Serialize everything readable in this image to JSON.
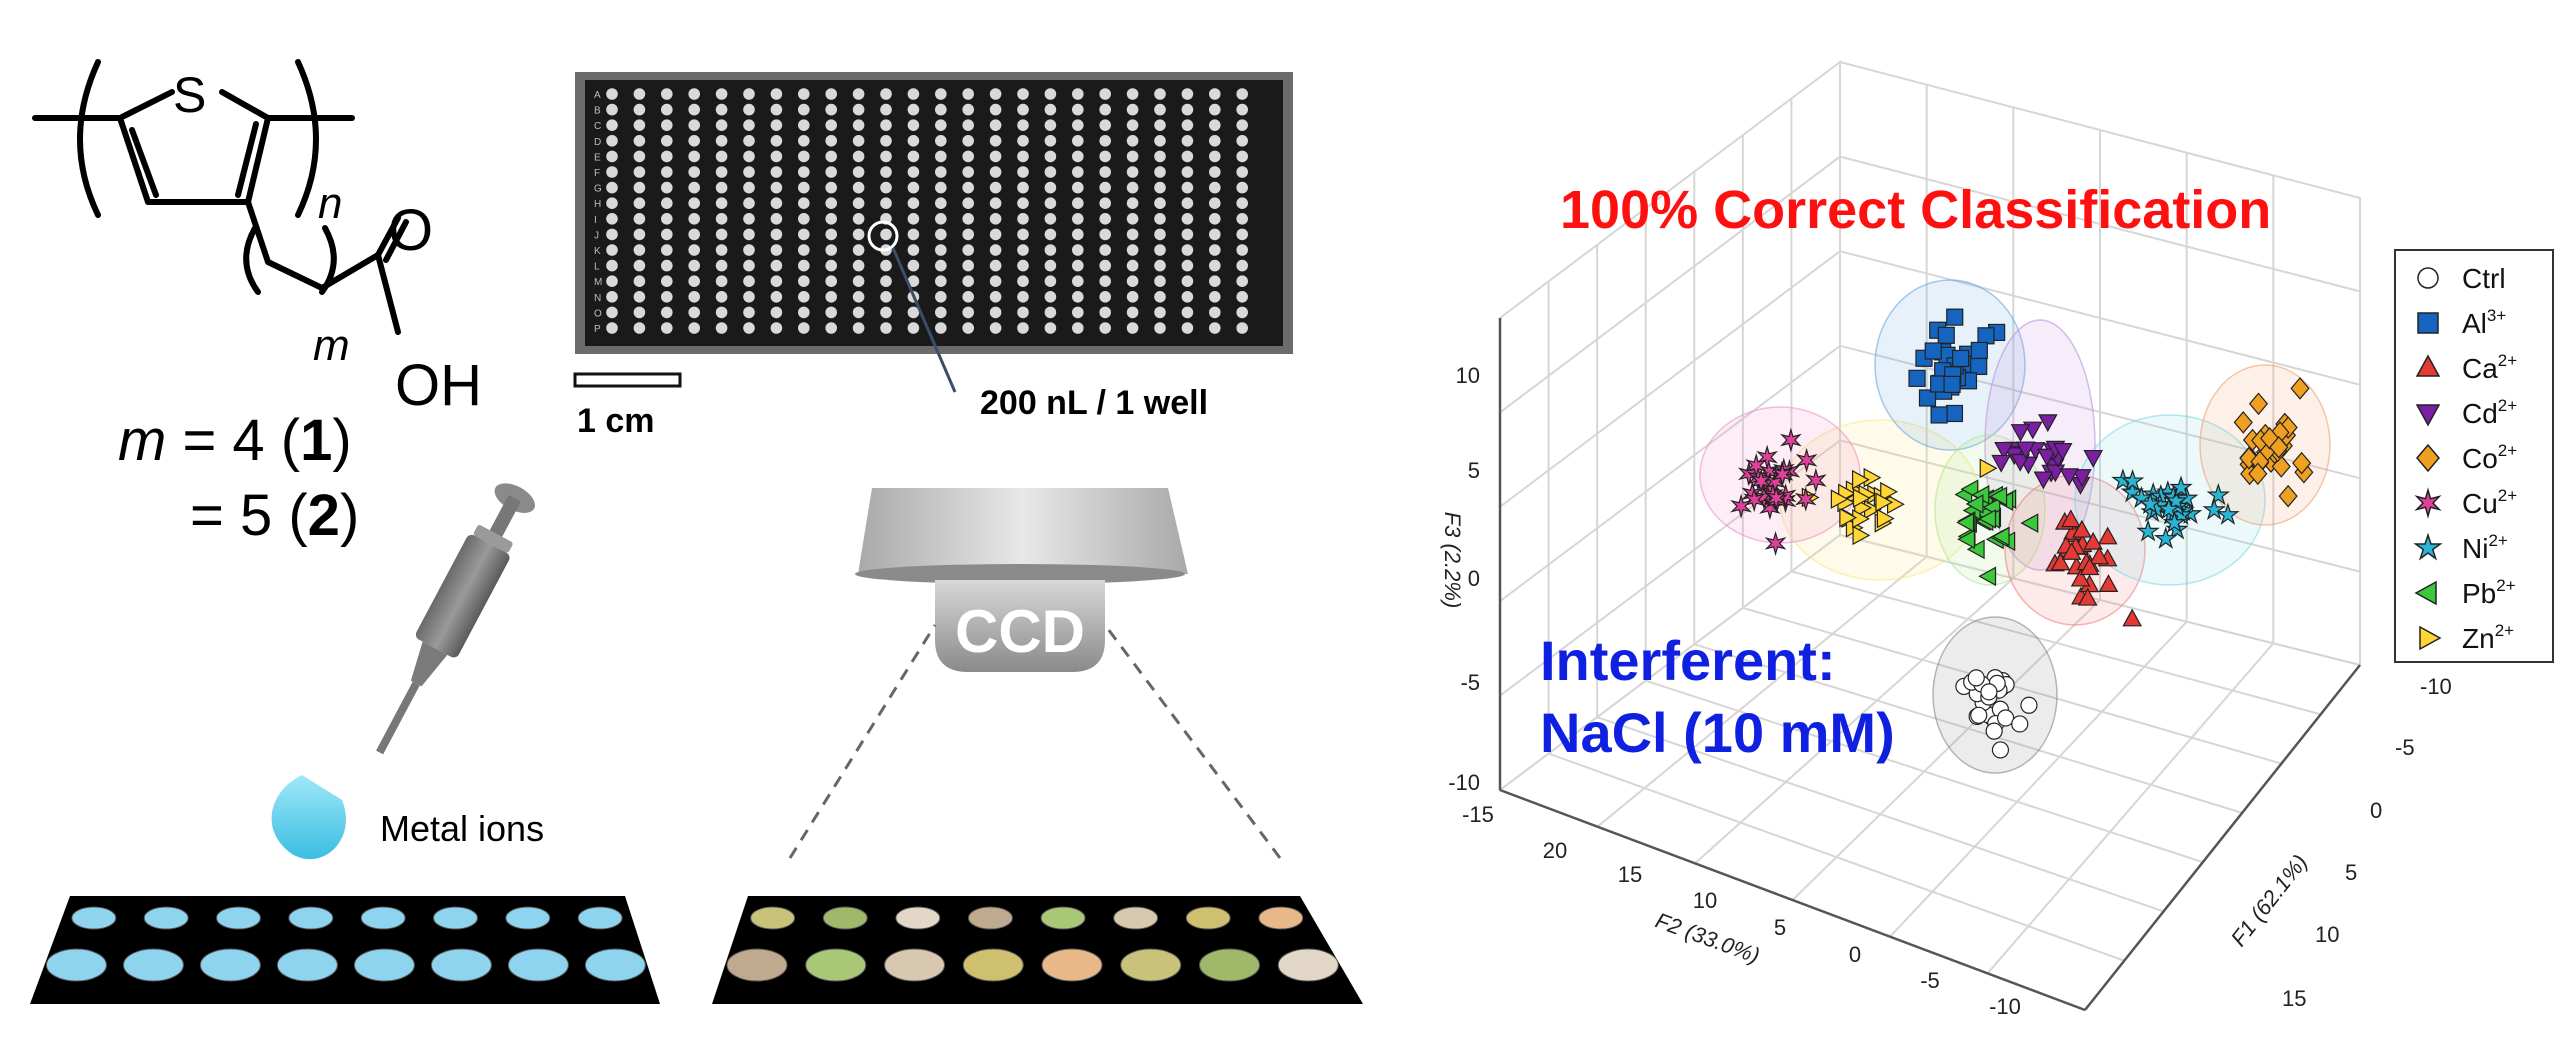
{
  "structure": {
    "heteroatom": "S",
    "repeat_n": "n",
    "repeat_m": "m",
    "carbonyl_O": "O",
    "hydroxyl": "OH",
    "formula_line1_prefix": "m",
    "formula_line1_eq": " = 4 (",
    "formula_line1_num": "1",
    "formula_line1_close": ")",
    "formula_line2_eq": "= 5 (",
    "formula_line2_num": "2",
    "formula_line2_close": ")"
  },
  "plate": {
    "row_letters": [
      "A",
      "B",
      "C",
      "D",
      "E",
      "F",
      "G",
      "H",
      "I",
      "J",
      "K",
      "L",
      "M",
      "N",
      "O",
      "P"
    ],
    "scale_label": "1 cm",
    "well_volume_label": "200 nL / 1 well"
  },
  "dispense": {
    "label": "Metal ions",
    "drop_color": "#5fd0ee"
  },
  "camera": {
    "label": "CCD"
  },
  "colors": {
    "well_blue": "#8fd4ee",
    "well_palette": [
      "#c8c27a",
      "#9fb86a",
      "#e3d8c8",
      "#bfa98f",
      "#a8c878",
      "#d9c8b0",
      "#cfc070",
      "#e8b888"
    ]
  },
  "chart_data": {
    "type": "scatter3d",
    "title": "100% Correct Classification",
    "annotation_line1": "Interferent:",
    "annotation_line2": "NaCl (10 mM)",
    "xlabel": "F1 (62.1%)",
    "ylabel": "F2 (33.0%)",
    "zlabel": "F3 (2.2%)",
    "f1_ticks": [
      "-10",
      "-5",
      "0",
      "5",
      "10",
      "15"
    ],
    "f2_ticks": [
      "20",
      "15",
      "10",
      "5",
      "0",
      "-5",
      "-10"
    ],
    "f2_extra_tick": "-15",
    "f3_ticks": [
      "10",
      "5",
      "0",
      "-5",
      "-10"
    ],
    "legend": [
      {
        "label": "Ctrl",
        "sup": "",
        "marker": "circle",
        "color": "#ffffff"
      },
      {
        "label": "Al",
        "sup": "3+",
        "marker": "square",
        "color": "#1565c0"
      },
      {
        "label": "Ca",
        "sup": "2+",
        "marker": "triangle-up",
        "color": "#e53935"
      },
      {
        "label": "Cd",
        "sup": "2+",
        "marker": "triangle-down",
        "color": "#7b1fa2"
      },
      {
        "label": "Co",
        "sup": "2+",
        "marker": "diamond",
        "color": "#f0a020"
      },
      {
        "label": "Cu",
        "sup": "2+",
        "marker": "hexagram",
        "color": "#e0409a"
      },
      {
        "label": "Ni",
        "sup": "2+",
        "marker": "pentagram",
        "color": "#29b6d6"
      },
      {
        "label": "Pb",
        "sup": "2+",
        "marker": "triangle-left",
        "color": "#3cc83c"
      },
      {
        "label": "Zn",
        "sup": "2+",
        "marker": "triangle-right",
        "color": "#ffd633"
      }
    ],
    "clusters": [
      {
        "name": "Ctrl",
        "ellipse_color": "#888888"
      },
      {
        "name": "Al",
        "ellipse_color": "#6aa8e0"
      },
      {
        "name": "Ca",
        "ellipse_color": "#f08080"
      },
      {
        "name": "Cd",
        "ellipse_color": "#c090e0"
      },
      {
        "name": "Co",
        "ellipse_color": "#f0a070"
      },
      {
        "name": "Cu",
        "ellipse_color": "#f090c8"
      },
      {
        "name": "Ni",
        "ellipse_color": "#80d8e8"
      },
      {
        "name": "Pb",
        "ellipse_color": "#b0e890"
      },
      {
        "name": "Zn",
        "ellipse_color": "#f8e880"
      }
    ]
  }
}
